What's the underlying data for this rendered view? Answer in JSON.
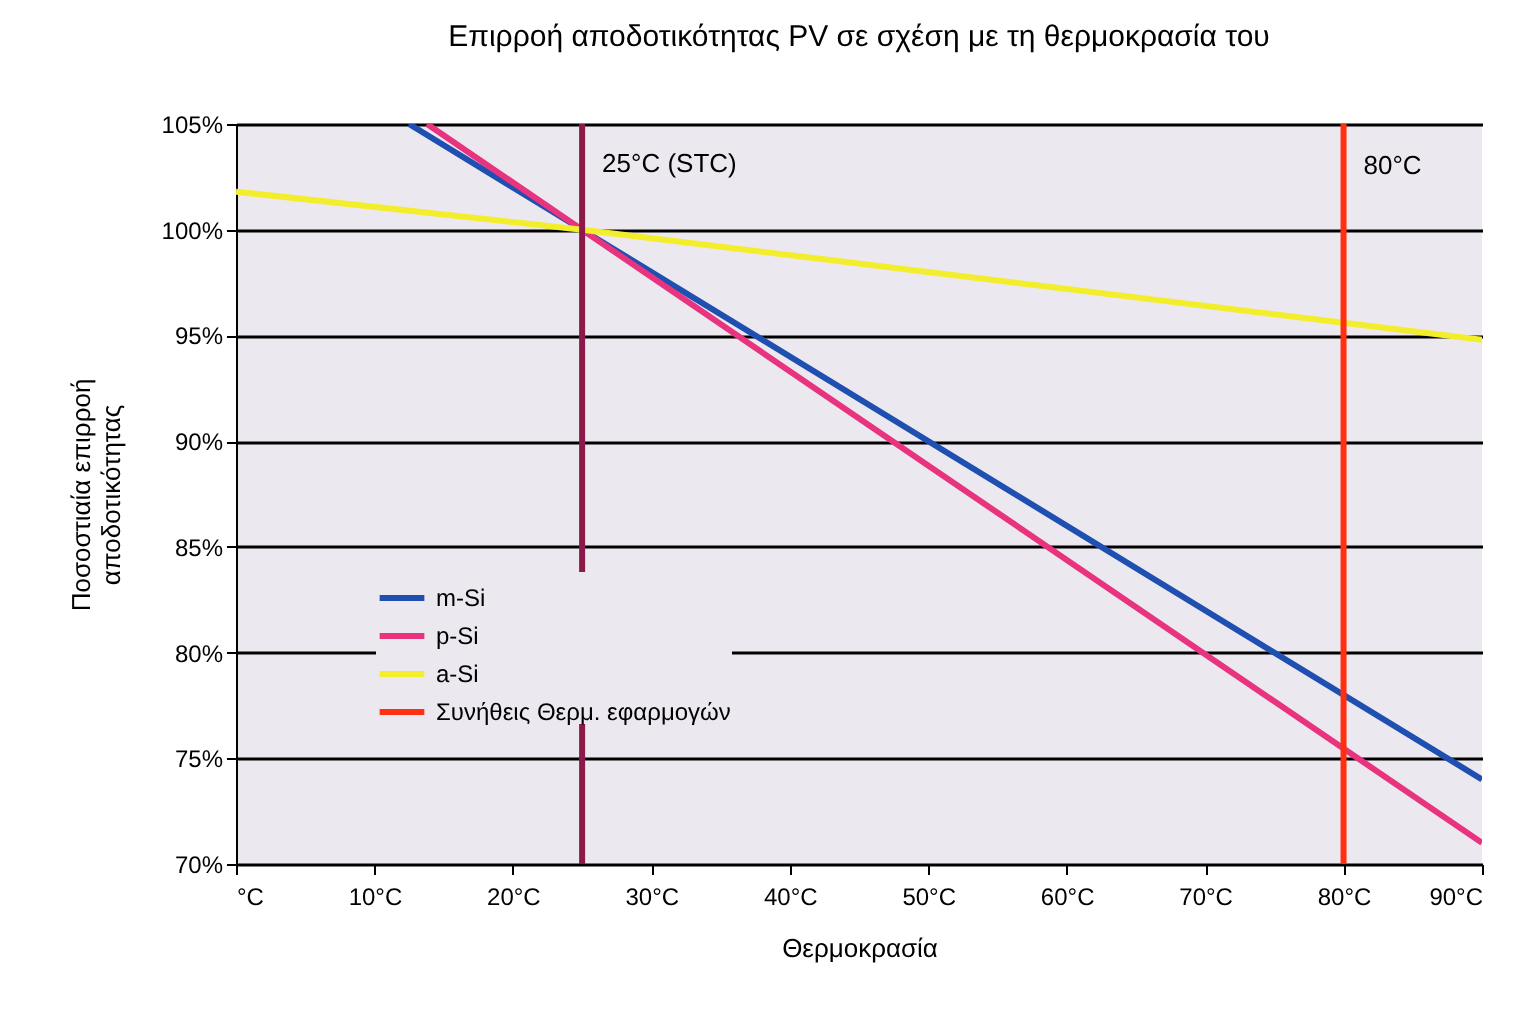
{
  "chart_data": {
    "type": "line",
    "title": "Επιρροή αποδοτικότητας PV σε σχέση με τη θερμοκρασία του",
    "xlabel": "Θερμοκρασία",
    "ylabel": "Ποσοστιαία επιρροή\nαποδοτικότητας",
    "xlim": [
      0,
      90
    ],
    "xticks": [
      {
        "value": 0,
        "label": "°C"
      },
      {
        "value": 10,
        "label": "10°C"
      },
      {
        "value": 20,
        "label": "20°C"
      },
      {
        "value": 30,
        "label": "30°C"
      },
      {
        "value": 40,
        "label": "40°C"
      },
      {
        "value": 50,
        "label": "50°C"
      },
      {
        "value": 60,
        "label": "60°C"
      },
      {
        "value": 70,
        "label": "70°C"
      },
      {
        "value": 80,
        "label": "80°C"
      },
      {
        "value": 90,
        "label": "90°C"
      }
    ],
    "ylim": [
      70,
      105
    ],
    "yticks": [
      {
        "value": 70,
        "label": "70%"
      },
      {
        "value": 75,
        "label": "75%"
      },
      {
        "value": 80,
        "label": "80%"
      },
      {
        "value": 85,
        "label": "85%"
      },
      {
        "value": 90,
        "label": "90%"
      },
      {
        "value": 95,
        "label": "95%"
      },
      {
        "value": 100,
        "label": "100%"
      },
      {
        "value": 105,
        "label": "105%"
      }
    ],
    "series": [
      {
        "name": "m-Si",
        "color": "#1f4fb0",
        "x": [
          12.5,
          25,
          90
        ],
        "values": [
          105,
          100,
          74
        ]
      },
      {
        "name": "p-Si",
        "color": "#e8337f",
        "x": [
          13.8,
          25,
          90
        ],
        "values": [
          105,
          100,
          71
        ]
      },
      {
        "name": "a-Si",
        "color": "#f2ee2c",
        "x": [
          0,
          25,
          90
        ],
        "values": [
          101.8,
          100,
          94.8
        ]
      },
      {
        "name": "Συνήθεις Θερμ. εφαρμογών",
        "color": "#ff3010",
        "x": [
          80,
          80
        ],
        "values": [
          70,
          105
        ]
      }
    ],
    "ref_lines": [
      {
        "axis": "x",
        "value": 25,
        "label": "25°C (STC)",
        "color": "#8b1a4a"
      }
    ],
    "annotations": [
      {
        "text": "80°C",
        "x": 80,
        "y": 103
      }
    ],
    "grid": "y",
    "legend": "bottom left"
  }
}
